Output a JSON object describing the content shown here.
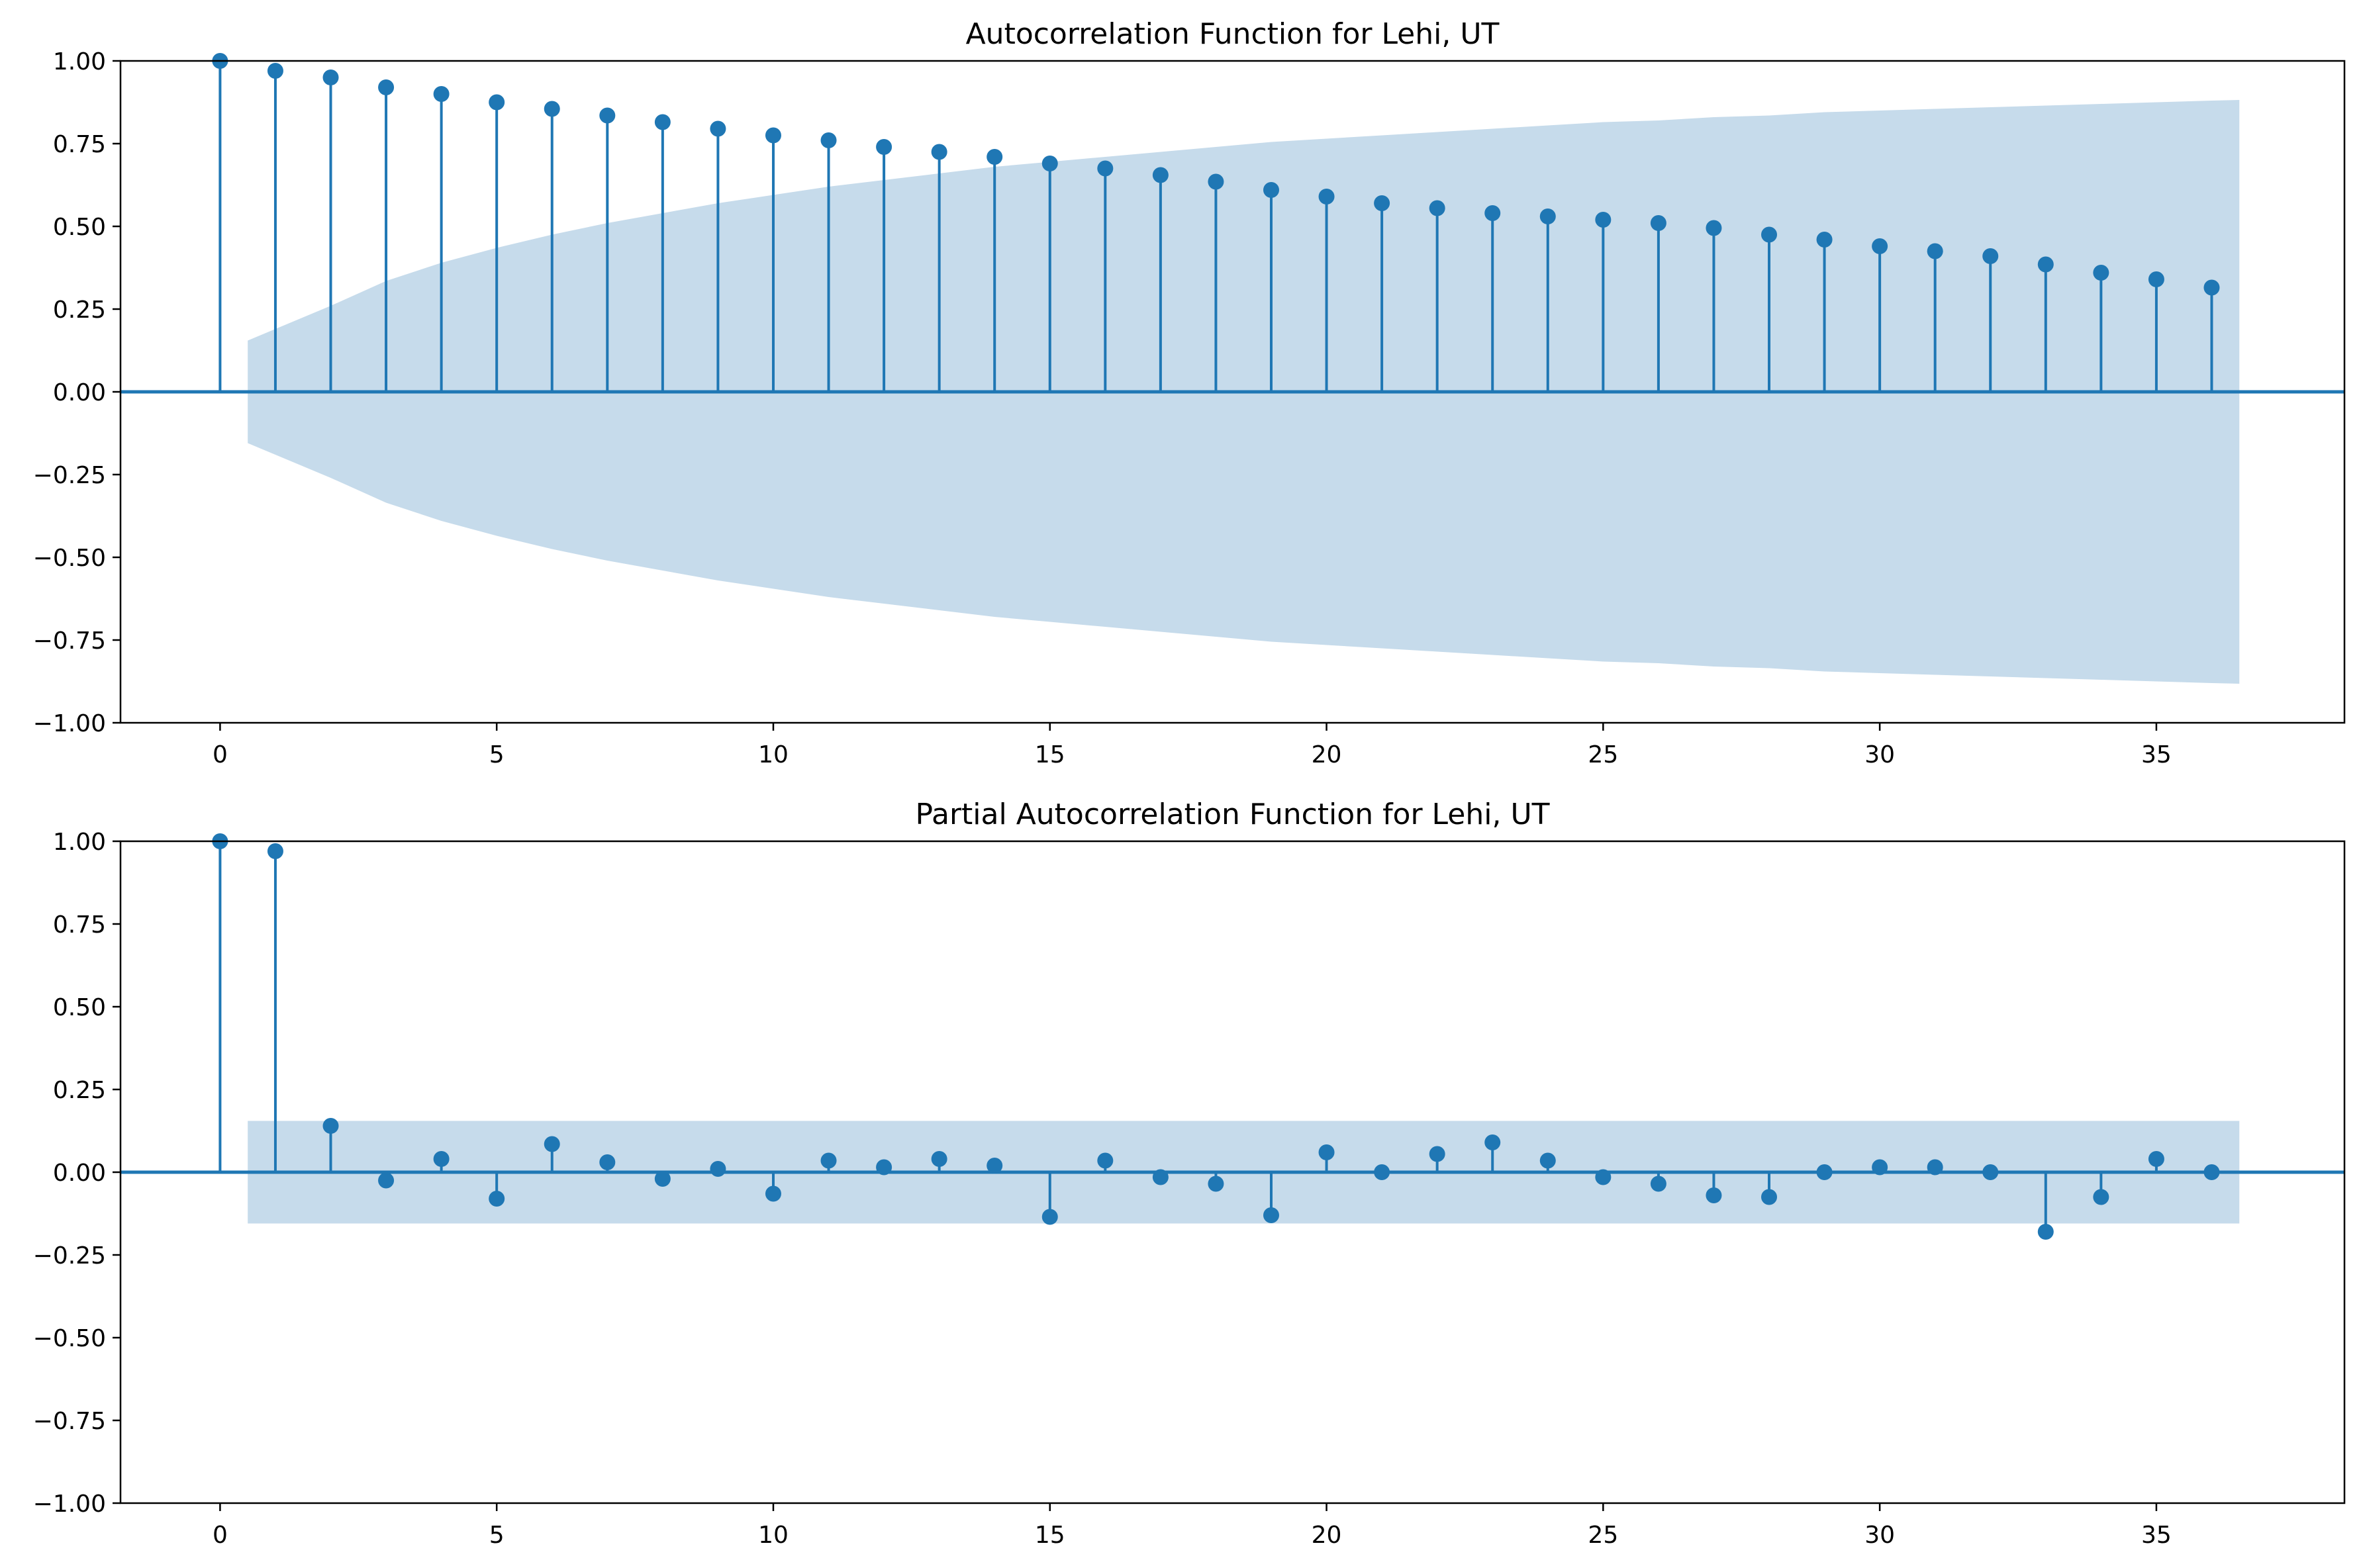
{
  "chart_data": [
    {
      "type": "stem",
      "title": "Autocorrelation Function for Lehi, UT",
      "xlabel": "",
      "ylabel": "",
      "xlim": [
        -1.8,
        38.4
      ],
      "ylim": [
        -1.0,
        1.0
      ],
      "x_ticks": [
        "0",
        "5",
        "10",
        "15",
        "20",
        "25",
        "30",
        "35"
      ],
      "y_ticks": [
        "−1.00",
        "−0.75",
        "−0.50",
        "−0.25",
        "0.00",
        "0.25",
        "0.50",
        "0.75",
        "1.00"
      ],
      "grid": false,
      "lags": [
        0,
        1,
        2,
        3,
        4,
        5,
        6,
        7,
        8,
        9,
        10,
        11,
        12,
        13,
        14,
        15,
        16,
        17,
        18,
        19,
        20,
        21,
        22,
        23,
        24,
        25,
        26,
        27,
        28,
        29,
        30,
        31,
        32,
        33,
        34,
        35,
        36
      ],
      "values": [
        1.0,
        0.97,
        0.95,
        0.92,
        0.9,
        0.875,
        0.855,
        0.835,
        0.815,
        0.795,
        0.775,
        0.76,
        0.74,
        0.725,
        0.71,
        0.69,
        0.675,
        0.655,
        0.635,
        0.61,
        0.59,
        0.57,
        0.555,
        0.54,
        0.53,
        0.52,
        0.51,
        0.495,
        0.475,
        0.46,
        0.44,
        0.425,
        0.41,
        0.385,
        0.36,
        0.34,
        0.315
      ],
      "confidence_band": {
        "x": [
          0.5,
          1,
          2,
          3,
          4,
          5,
          6,
          7,
          8,
          9,
          10,
          11,
          12,
          13,
          14,
          15,
          16,
          17,
          18,
          19,
          20,
          21,
          22,
          23,
          24,
          25,
          26,
          27,
          28,
          29,
          30,
          31,
          32,
          33,
          34,
          35,
          36,
          36.5
        ],
        "upper": [
          0.155,
          0.19,
          0.26,
          0.335,
          0.39,
          0.435,
          0.475,
          0.51,
          0.54,
          0.57,
          0.595,
          0.62,
          0.64,
          0.66,
          0.68,
          0.695,
          0.71,
          0.725,
          0.74,
          0.755,
          0.765,
          0.775,
          0.785,
          0.795,
          0.805,
          0.815,
          0.82,
          0.83,
          0.835,
          0.845,
          0.85,
          0.855,
          0.86,
          0.865,
          0.87,
          0.875,
          0.88,
          0.882
        ]
      },
      "colors": {
        "stem": "#1f77b4",
        "band": "#c6dbeb",
        "baseline": "#1f77b4"
      }
    },
    {
      "type": "stem",
      "title": "Partial Autocorrelation Function for Lehi, UT",
      "xlabel": "",
      "ylabel": "",
      "xlim": [
        -1.8,
        38.4
      ],
      "ylim": [
        -1.0,
        1.0
      ],
      "x_ticks": [
        "0",
        "5",
        "10",
        "15",
        "20",
        "25",
        "30",
        "35"
      ],
      "y_ticks": [
        "−1.00",
        "−0.75",
        "−0.50",
        "−0.25",
        "0.00",
        "0.25",
        "0.50",
        "0.75",
        "1.00"
      ],
      "grid": false,
      "lags": [
        0,
        1,
        2,
        3,
        4,
        5,
        6,
        7,
        8,
        9,
        10,
        11,
        12,
        13,
        14,
        15,
        16,
        17,
        18,
        19,
        20,
        21,
        22,
        23,
        24,
        25,
        26,
        27,
        28,
        29,
        30,
        31,
        32,
        33,
        34,
        35,
        36
      ],
      "values": [
        1.0,
        0.97,
        0.14,
        -0.025,
        0.04,
        -0.08,
        0.085,
        0.03,
        -0.02,
        0.01,
        -0.065,
        0.035,
        0.015,
        0.04,
        0.02,
        -0.135,
        0.035,
        -0.015,
        -0.035,
        -0.13,
        0.06,
        0.0,
        0.055,
        0.09,
        0.035,
        -0.015,
        -0.035,
        -0.07,
        -0.075,
        0.0,
        0.015,
        0.015,
        0.0,
        -0.18,
        -0.075,
        0.04,
        0.0
      ],
      "confidence_band": {
        "x": [
          0.5,
          36.5
        ],
        "upper": [
          0.155,
          0.155
        ]
      },
      "colors": {
        "stem": "#1f77b4",
        "band": "#c6dbeb",
        "baseline": "#1f77b4"
      }
    }
  ]
}
